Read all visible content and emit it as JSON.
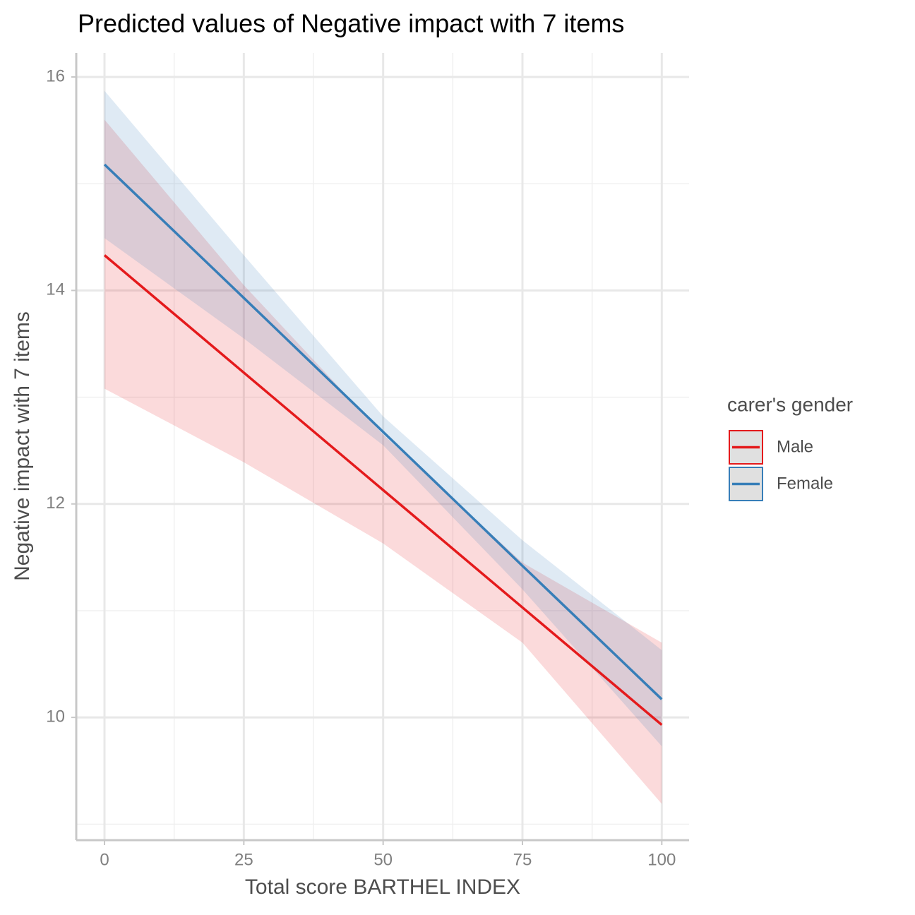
{
  "chart_data": {
    "type": "line",
    "title": "Predicted values of Negative impact with 7 items",
    "x_label": "Total score BARTHEL INDEX",
    "y_label": "Negative impact with 7 items",
    "legend_title": "carer's gender",
    "legend_position": "right",
    "grid": true,
    "x": [
      0,
      25,
      50,
      75,
      100
    ],
    "series": [
      {
        "name": "Male",
        "color": "#e41a1c",
        "values": [
          14.33,
          13.23,
          12.13,
          11.03,
          9.93
        ],
        "lower": [
          13.08,
          12.39,
          11.63,
          10.7,
          9.19
        ],
        "upper": [
          15.6,
          14.05,
          12.65,
          11.45,
          10.7
        ]
      },
      {
        "name": "Female",
        "color": "#377eb8",
        "values": [
          15.18,
          13.93,
          12.675,
          11.42,
          10.17
        ],
        "lower": [
          14.49,
          13.55,
          12.55,
          11.2,
          9.73
        ],
        "upper": [
          15.87,
          14.33,
          12.82,
          11.66,
          10.63
        ]
      }
    ],
    "xlim": [
      -5.07,
      104.9
    ],
    "ylim": [
      8.85,
      16.225
    ],
    "xticks": [
      0,
      25,
      50,
      75,
      100
    ],
    "yticks": [
      10,
      12,
      14,
      16
    ],
    "x_minor_grid": [
      12.5,
      37.5,
      62.5,
      87.5
    ],
    "y_minor_grid": [
      9,
      11,
      13,
      15
    ]
  }
}
